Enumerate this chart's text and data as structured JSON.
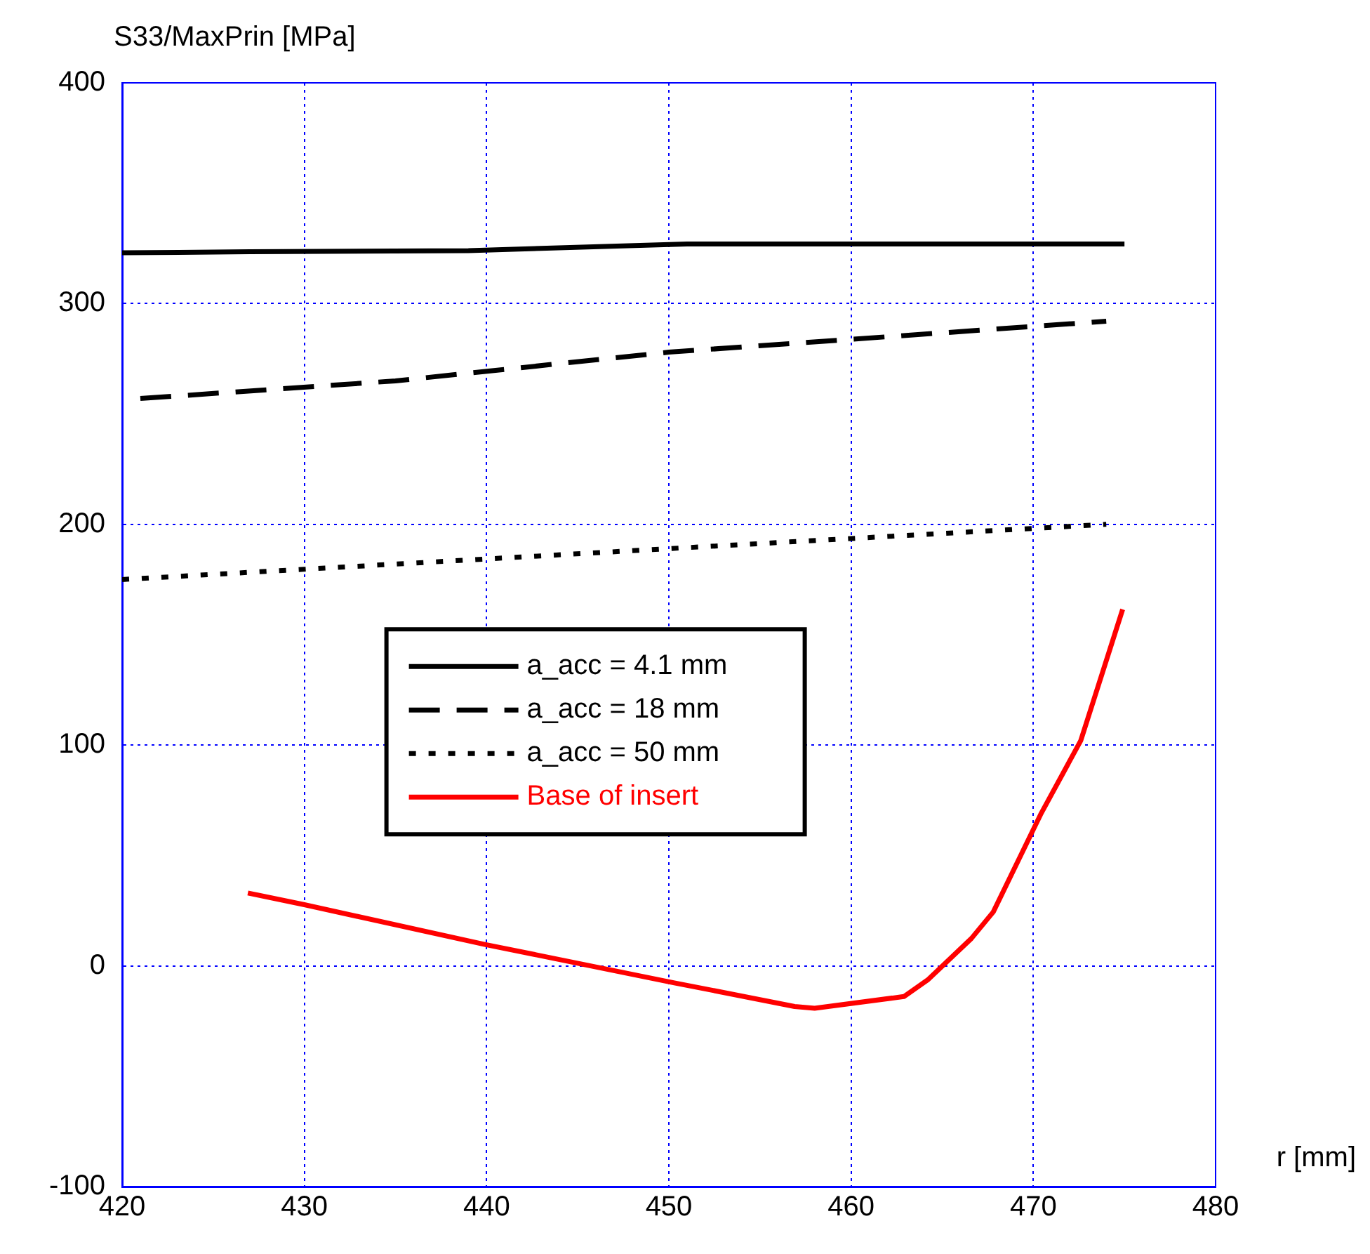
{
  "chart_data": {
    "type": "line",
    "ylabel": "S33/MaxPrin [MPa]",
    "xlabel": "r [mm]",
    "xlim": [
      420,
      480
    ],
    "xticks": [
      420,
      430,
      440,
      450,
      460,
      470,
      480
    ],
    "ylim": [
      -100,
      400
    ],
    "yticks": [
      -100,
      0,
      100,
      200,
      300,
      400
    ],
    "grid": true,
    "legend": "center",
    "marker": "none",
    "series": [
      {
        "name": "a_acc = 4.1 mm",
        "color": "#000000",
        "line_style": "solid",
        "x": [
          420,
          427,
          439,
          451,
          475
        ],
        "values": [
          323,
          323.5,
          324,
          327,
          327
        ]
      },
      {
        "name": "a_acc = 18 mm",
        "color": "#000000",
        "line_style": "dashed",
        "x": [
          421,
          435,
          450,
          462,
          474
        ],
        "values": [
          257,
          265,
          278,
          285,
          292
        ]
      },
      {
        "name": "a_acc = 50 mm",
        "color": "#000000",
        "line_style": "dotted",
        "x": [
          420,
          450,
          474
        ],
        "values": [
          175,
          189,
          200
        ]
      },
      {
        "name": "Base of insert",
        "color": "#ff0000",
        "line_style": "solid",
        "x": [
          426.9,
          430,
          439.9,
          450.3,
          456.9,
          458,
          462.9,
          464.2,
          466.6,
          467.8,
          470.4,
          472.6,
          474.9
        ],
        "values": [
          33,
          27.7,
          9.7,
          -7.7,
          -18.4,
          -19.2,
          -13.9,
          -6.4,
          12.4,
          24.4,
          68.6,
          102,
          161.5
        ]
      }
    ]
  }
}
